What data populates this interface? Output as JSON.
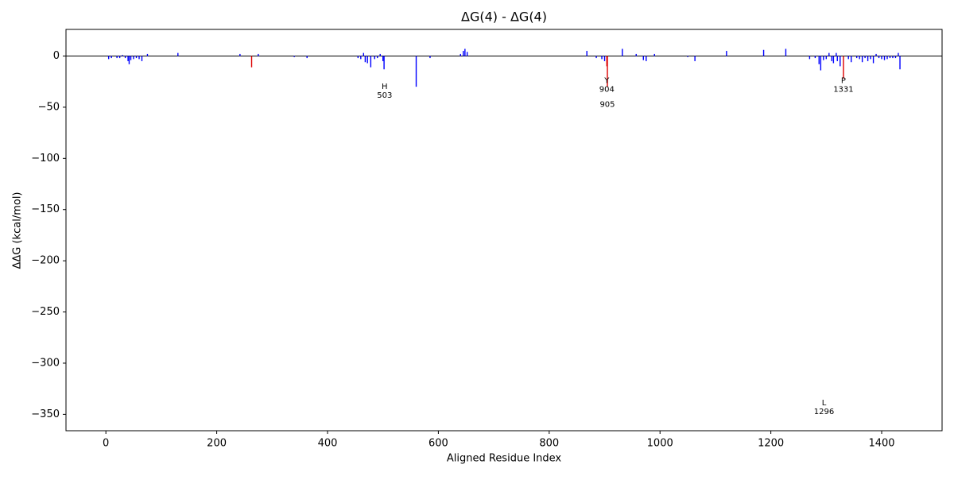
{
  "chart_data": {
    "type": "bar",
    "title": "ΔG(4) - ΔG(4)",
    "x_label": "Aligned Residue Index",
    "y_label": "ΔΔG (kcal/mol)",
    "xlim": [
      -72,
      1509
    ],
    "ylim": [
      -366,
      26
    ],
    "xticks": [
      0,
      200,
      400,
      600,
      800,
      1000,
      1200,
      1400
    ],
    "yticks": [
      0,
      {
        "value": -50,
        "label": "−50"
      },
      {
        "value": -100,
        "label": "−100"
      },
      {
        "value": -150,
        "label": "−150"
      },
      {
        "value": -200,
        "label": "−200"
      },
      {
        "value": -250,
        "label": "−250"
      },
      {
        "value": -300,
        "label": "−300"
      },
      {
        "value": -350,
        "label": "−350"
      }
    ],
    "series": [
      {
        "color": "#0000ff",
        "x": [
          5,
          10,
          20,
          25,
          30,
          35,
          40,
          42,
          45,
          50,
          55,
          60,
          65,
          75,
          130,
          242,
          275,
          340,
          363,
          455,
          460,
          465,
          468,
          472,
          478,
          485,
          490,
          495,
          500,
          502,
          560,
          585,
          640,
          645,
          648,
          652,
          868,
          885,
          895,
          900,
          932,
          957,
          970,
          975,
          990,
          1050,
          1063,
          1120,
          1187,
          1227,
          1270,
          1280,
          1287,
          1290,
          1295,
          1300,
          1305,
          1310,
          1313,
          1318,
          1320,
          1325,
          1340,
          1345,
          1355,
          1360,
          1365,
          1370,
          1375,
          1380,
          1385,
          1390,
          1395,
          1400,
          1405,
          1410,
          1415,
          1420,
          1425,
          1430,
          1433
        ],
        "values": [
          -3,
          -2,
          -2,
          -2,
          1,
          -2,
          -5,
          -8,
          -4,
          -3,
          -2,
          -3,
          -5,
          2,
          3,
          2,
          2,
          -1,
          -2,
          -2,
          -3,
          3,
          -6,
          -7,
          -11,
          -3,
          -2,
          2,
          -5,
          -13,
          -30,
          -2,
          2,
          5,
          7,
          4,
          5,
          -2,
          -3,
          -5,
          7,
          2,
          -4,
          -5,
          2,
          -1,
          -5,
          5,
          6,
          7,
          -3,
          -2,
          -8,
          -14,
          -4,
          -3,
          3,
          -5,
          -7,
          3,
          -5,
          -10,
          -3,
          -6,
          -2,
          -3,
          -6,
          -2,
          -5,
          -3,
          -7,
          2,
          -2,
          -3,
          -4,
          -3,
          -2,
          -2,
          -2,
          3,
          -13
        ]
      },
      {
        "color": "#dd0000",
        "x": [
          263,
          904,
          905,
          1331
        ],
        "values": [
          -11,
          -10,
          -30,
          -22
        ]
      }
    ],
    "annotations": [
      {
        "residue": "H",
        "index": 503,
        "y": -30
      },
      {
        "residue": "Y",
        "index": 904,
        "y": -24
      },
      {
        "index": 905,
        "y": -39
      },
      {
        "residue": "P",
        "index": 1331,
        "y": -24
      },
      {
        "residue": "L",
        "index": 1296,
        "y": -339
      }
    ]
  }
}
